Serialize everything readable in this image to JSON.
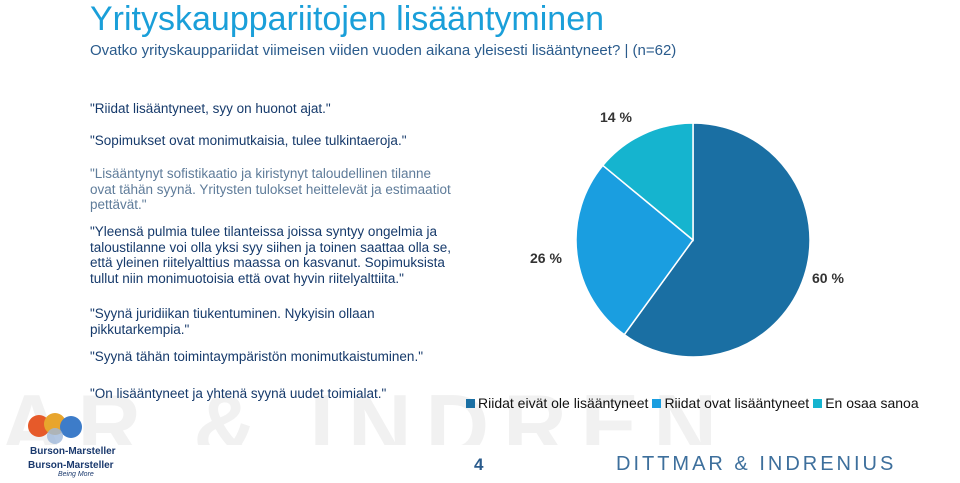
{
  "title": "Yrityskauppariitojen lisääntyminen",
  "subtitle": "Ovatko yrityskauppariidat viimeisen viiden vuoden aikana yleisesti lisääntyneet?  |  (n=62)",
  "quotes": [
    "\"Riidat lisääntyneet, syy on huonot ajat.\"",
    "\"Sopimukset ovat monimutkaisia, tulee tulkintaeroja.\"",
    "\"Lisääntynyt sofistikaatio ja kiristynyt taloudellinen tilanne ovat tähän syynä. Yritysten tulokset heittelevät ja estimaatiot pettävät.\"",
    "\"Yleensä pulmia tulee tilanteissa joissa syntyy ongelmia ja taloustilanne voi olla yksi syy siihen ja toinen saattaa olla se, että yleinen riitelyalttius maassa on kasvanut. Sopimuksista tullut niin monimuotoisia että ovat hyvin riitelyalttiita.\"",
    "\"Syynä juridiikan tiukentuminen. Nykyisin ollaan pikkutarkempia.\"",
    "\"Syynä tähän toimintaympäristön monimutkaistuminen.\"",
    "\"On lisääntyneet ja yhtenä syynä uudet toimialat.\""
  ],
  "chart_data": {
    "type": "pie",
    "categories": [
      "Riidat eivät ole lisääntyneet",
      "Riidat ovat lisääntyneet",
      "En osaa sanoa"
    ],
    "values": [
      60,
      26,
      14
    ],
    "labels": [
      "60 %",
      "26 %",
      "14 %"
    ],
    "colors": [
      "#1a6fa3",
      "#1a9ee0",
      "#15b4cf"
    ],
    "legend_position": "bottom"
  },
  "watermark": "AR & INDREN",
  "logo": {
    "name1": "Burson-Marsteller",
    "name2": "Burson-Marsteller",
    "tagline": "Being More"
  },
  "page_number": "4",
  "brand": "DITTMAR & INDRENIUS"
}
